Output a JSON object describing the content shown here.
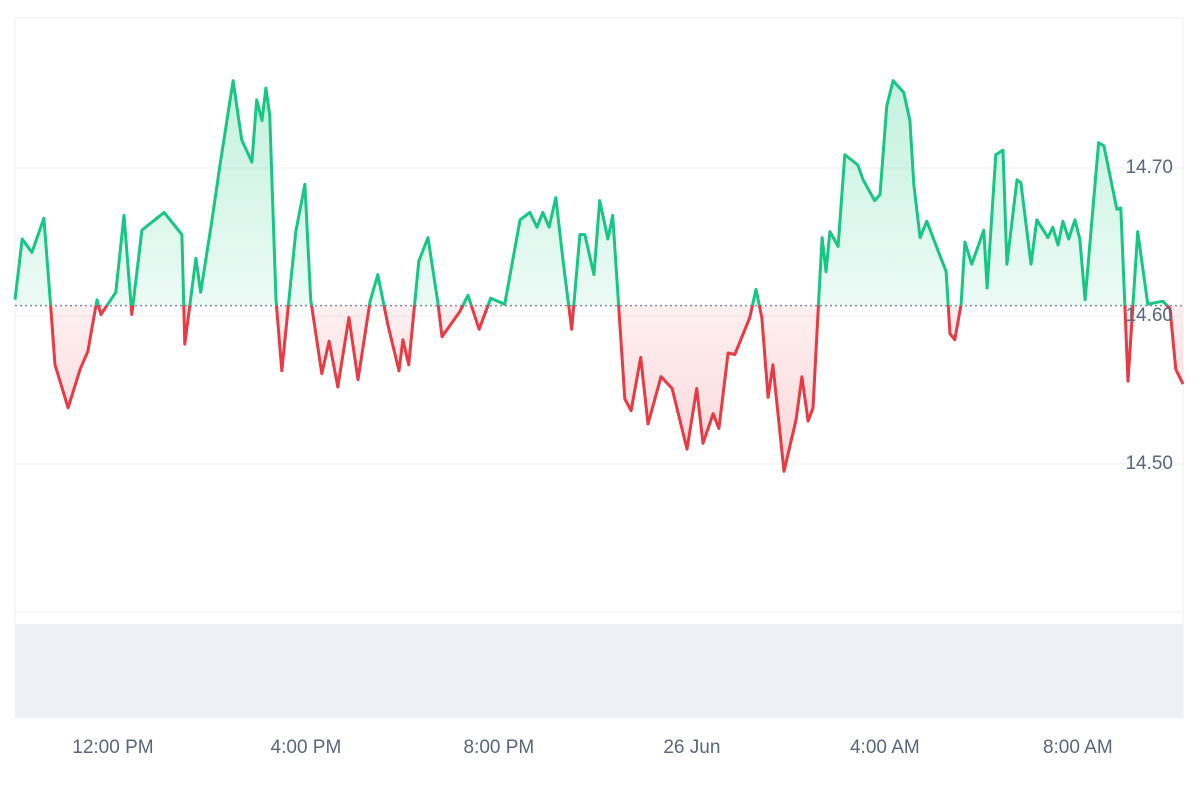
{
  "chart_data": {
    "type": "line",
    "color_up": "#16c784",
    "color_down": "#ea3943",
    "baseline": 14.607,
    "grid": true,
    "xlim": [
      9.97,
      34.18
    ],
    "xticks": [
      {
        "value": 12,
        "label": "12:00 PM"
      },
      {
        "value": 16,
        "label": "4:00 PM"
      },
      {
        "value": 20,
        "label": "8:00 PM"
      },
      {
        "value": 24,
        "label": "26 Jun"
      },
      {
        "value": 28,
        "label": "4:00 AM"
      },
      {
        "value": 32,
        "label": "8:00 AM"
      }
    ],
    "ylim": [
      14.4,
      14.8
    ],
    "yticks": [
      {
        "value": 14.5,
        "label": "14.50"
      },
      {
        "value": 14.6,
        "label": "14.60"
      },
      {
        "value": 14.7,
        "label": "14.70"
      }
    ],
    "x": [
      9.97,
      10.12,
      10.32,
      10.57,
      10.7,
      10.8,
      11.07,
      11.32,
      11.48,
      11.67,
      11.75,
      12.06,
      12.23,
      12.39,
      12.6,
      13.06,
      13.43,
      13.49,
      13.72,
      13.82,
      14.05,
      14.22,
      14.49,
      14.67,
      14.88,
      14.98,
      15.09,
      15.17,
      15.25,
      15.38,
      15.5,
      15.79,
      15.98,
      16.1,
      16.33,
      16.48,
      16.66,
      16.89,
      17.08,
      17.33,
      17.49,
      17.7,
      17.93,
      18.01,
      18.13,
      18.34,
      18.53,
      18.74,
      18.82,
      19.19,
      19.36,
      19.59,
      19.83,
      20.12,
      20.44,
      20.64,
      20.79,
      20.91,
      21.04,
      21.18,
      21.33,
      21.51,
      21.68,
      21.78,
      21.97,
      22.09,
      22.26,
      22.36,
      22.61,
      22.74,
      22.94,
      23.09,
      23.36,
      23.59,
      23.9,
      24.1,
      24.23,
      24.44,
      24.56,
      24.75,
      24.89,
      25.2,
      25.33,
      25.45,
      25.58,
      25.68,
      25.91,
      26.16,
      26.28,
      26.41,
      26.51,
      26.63,
      26.7,
      26.78,
      26.86,
      27.03,
      27.17,
      27.44,
      27.55,
      27.79,
      27.9,
      28.04,
      28.17,
      28.39,
      28.52,
      28.6,
      28.73,
      28.87,
      29.14,
      29.27,
      29.35,
      29.45,
      29.58,
      29.66,
      29.8,
      30.05,
      30.12,
      30.3,
      30.45,
      30.53,
      30.74,
      30.82,
      31.03,
      31.15,
      31.38,
      31.48,
      31.59,
      31.69,
      31.81,
      31.94,
      32.04,
      32.15,
      32.43,
      32.54,
      32.81,
      32.89,
      33.04,
      33.24,
      33.45,
      33.76,
      33.91,
      34.03,
      34.18
    ],
    "values": [
      14.611,
      14.652,
      14.643,
      14.666,
      14.611,
      14.567,
      14.538,
      14.564,
      14.576,
      14.611,
      14.601,
      14.616,
      14.668,
      14.601,
      14.658,
      14.67,
      14.655,
      14.581,
      14.639,
      14.616,
      14.664,
      14.702,
      14.759,
      14.719,
      14.704,
      14.746,
      14.732,
      14.754,
      14.736,
      14.611,
      14.563,
      14.657,
      14.689,
      14.611,
      14.561,
      14.583,
      14.552,
      14.599,
      14.557,
      14.61,
      14.628,
      14.594,
      14.563,
      14.584,
      14.567,
      14.637,
      14.653,
      14.608,
      14.586,
      14.603,
      14.614,
      14.591,
      14.612,
      14.608,
      14.665,
      14.67,
      14.66,
      14.67,
      14.66,
      14.68,
      14.637,
      14.591,
      14.655,
      14.655,
      14.628,
      14.678,
      14.652,
      14.668,
      14.544,
      14.536,
      14.572,
      14.527,
      14.559,
      14.551,
      14.51,
      14.551,
      14.514,
      14.534,
      14.524,
      14.575,
      14.574,
      14.599,
      14.618,
      14.599,
      14.545,
      14.567,
      14.495,
      14.53,
      14.559,
      14.529,
      14.538,
      14.612,
      14.653,
      14.63,
      14.657,
      14.647,
      14.709,
      14.702,
      14.692,
      14.678,
      14.682,
      14.742,
      14.759,
      14.751,
      14.732,
      14.689,
      14.653,
      14.664,
      14.641,
      14.63,
      14.588,
      14.584,
      14.608,
      14.65,
      14.635,
      14.658,
      14.619,
      14.709,
      14.712,
      14.635,
      14.692,
      14.69,
      14.635,
      14.665,
      14.653,
      14.66,
      14.648,
      14.664,
      14.652,
      14.665,
      14.652,
      14.611,
      14.717,
      14.715,
      14.672,
      14.673,
      14.556,
      14.657,
      14.608,
      14.61,
      14.605,
      14.564,
      14.554
    ]
  }
}
